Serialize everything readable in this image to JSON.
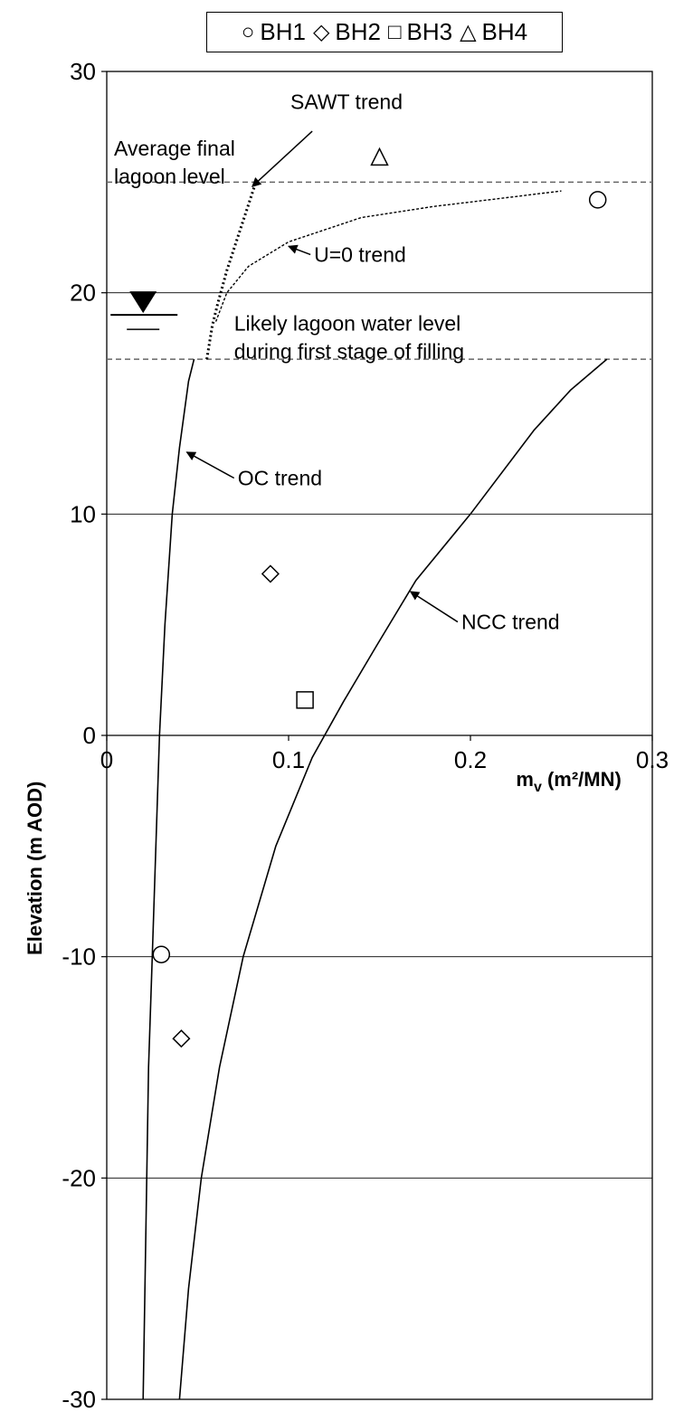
{
  "chart_data": {
    "type": "scatter",
    "title": "",
    "xlabel": "m_v (m²/MN)",
    "ylabel": "Elevation (m AOD)",
    "xlim": [
      0,
      0.3
    ],
    "ylim": [
      -30,
      30
    ],
    "x_ticks": [
      "0",
      "0.1",
      "0.2",
      "0.3"
    ],
    "y_ticks": [
      "30",
      "20",
      "10",
      "0",
      "-10",
      "-20",
      "-30"
    ],
    "grid": "horizontal",
    "legend_position": "top",
    "legend": [
      {
        "label": "BH1",
        "marker": "circle",
        "symbol": "○"
      },
      {
        "label": "BH2",
        "marker": "diamond",
        "symbol": "◇"
      },
      {
        "label": "BH3",
        "marker": "square",
        "symbol": "□"
      },
      {
        "label": "BH4",
        "marker": "triangle",
        "symbol": "△"
      }
    ],
    "series": [
      {
        "name": "BH1",
        "marker": "circle",
        "points": [
          [
            0.27,
            24.2
          ],
          [
            0.03,
            -9.9
          ]
        ]
      },
      {
        "name": "BH2",
        "marker": "diamond",
        "points": [
          [
            0.09,
            7.3
          ],
          [
            0.041,
            -13.7
          ]
        ]
      },
      {
        "name": "BH3",
        "marker": "square",
        "points": [
          [
            0.109,
            1.6
          ]
        ]
      },
      {
        "name": "BH4",
        "marker": "triangle",
        "points": [
          [
            0.15,
            26.1
          ]
        ]
      }
    ],
    "trend_lines": [
      {
        "label": "OC trend",
        "style": "solid",
        "points": [
          [
            0.02,
            -30
          ],
          [
            0.021,
            -25
          ],
          [
            0.022,
            -20
          ],
          [
            0.023,
            -15
          ],
          [
            0.025,
            -10
          ],
          [
            0.027,
            -5
          ],
          [
            0.029,
            0
          ],
          [
            0.032,
            5
          ],
          [
            0.036,
            10
          ],
          [
            0.04,
            13
          ],
          [
            0.045,
            16
          ],
          [
            0.048,
            17
          ]
        ]
      },
      {
        "label": "NCC trend",
        "style": "solid",
        "points": [
          [
            0.04,
            -30
          ],
          [
            0.045,
            -25
          ],
          [
            0.052,
            -20
          ],
          [
            0.062,
            -15
          ],
          [
            0.075,
            -10
          ],
          [
            0.093,
            -5
          ],
          [
            0.113,
            -1
          ],
          [
            0.13,
            1.5
          ],
          [
            0.148,
            4
          ],
          [
            0.17,
            7
          ],
          [
            0.2,
            10
          ],
          [
            0.235,
            13.8
          ],
          [
            0.255,
            15.6
          ],
          [
            0.275,
            17
          ]
        ]
      },
      {
        "label": "SAWT trend",
        "style": "dotted",
        "points": [
          [
            0.055,
            17
          ],
          [
            0.058,
            18.5
          ],
          [
            0.061,
            19.5
          ],
          [
            0.066,
            21
          ],
          [
            0.072,
            22.5
          ],
          [
            0.078,
            24
          ],
          [
            0.082,
            25
          ]
        ]
      },
      {
        "label": "U=0 trend",
        "style": "dashed-fine",
        "points": [
          [
            0.06,
            18.7
          ],
          [
            0.066,
            20
          ],
          [
            0.078,
            21.2
          ],
          [
            0.1,
            22.3
          ],
          [
            0.14,
            23.4
          ],
          [
            0.18,
            23.9
          ],
          [
            0.22,
            24.3
          ],
          [
            0.25,
            24.6
          ]
        ]
      }
    ],
    "reference_lines": [
      {
        "y": 25,
        "style": "dashed",
        "label": "Average final lagoon level"
      },
      {
        "y": 17,
        "style": "dashed",
        "label": "Likely lagoon water level during first stage of filling"
      }
    ],
    "water_table_marker": {
      "x": 0.02,
      "y": 19
    },
    "annotations": [
      {
        "text": "SAWT trend",
        "at": [
          0.101,
          28.3
        ],
        "arrow_to": [
          0.08,
          24.8
        ]
      },
      {
        "text": "Average final lagoon level",
        "lines": [
          "Average final",
          "lagoon level"
        ],
        "at": [
          0.004,
          26.2
        ]
      },
      {
        "text": "U=0 trend",
        "at": [
          0.114,
          21.4
        ],
        "arrow_to": [
          0.1,
          22.1
        ]
      },
      {
        "text": "Likely lagoon water level during first stage of filling",
        "lines": [
          "Likely lagoon water level",
          "during first stage of filling"
        ],
        "at": [
          0.07,
          18.3
        ]
      },
      {
        "text": "OC trend",
        "at": [
          0.072,
          11.3
        ],
        "arrow_to": [
          0.044,
          12.8
        ]
      },
      {
        "text": "NCC trend",
        "at": [
          0.195,
          4.8
        ],
        "arrow_to": [
          0.167,
          6.5
        ]
      }
    ]
  }
}
